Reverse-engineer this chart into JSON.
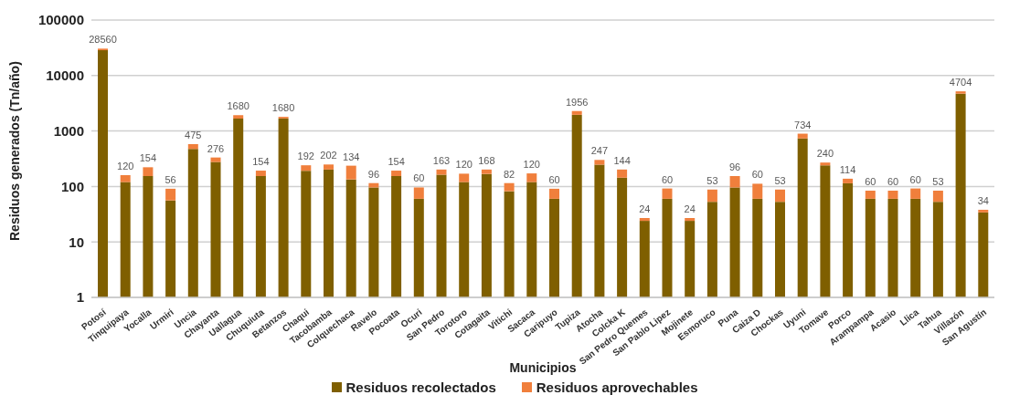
{
  "chart_data": {
    "type": "bar",
    "stacked": true,
    "log": true,
    "xlabel": "Municipios",
    "ylabel": "Residuos generados (Tn/año)",
    "categories": [
      "Potosí",
      "Tinquipaya",
      "Yocalla",
      "Urmiri",
      "Uncia",
      "Chayanta",
      "Uallagua",
      "Chuquiuta",
      "Betanzos",
      "Chaqui",
      "Tacobamba",
      "Colquechaca",
      "Ravelo",
      "Pocoata",
      "Ocuri",
      "San Pedro",
      "Torotoro",
      "Cotagaita",
      "Vitichi",
      "Sacaca",
      "Caripuyo",
      "Tupiza",
      "Atocha",
      "Colcka K",
      "San Pedro Quemes",
      "San Pablo Lipez",
      "Mojinete",
      "Esmoruco",
      "Puna",
      "Caiza D",
      "Chockas",
      "Uyuni",
      "Tomave",
      "Porco",
      "Arampampa",
      "Acasio",
      "Llica",
      "Tahua",
      "Villazón",
      "San Agustín"
    ],
    "series": [
      {
        "name": "Residuos recolectados",
        "color": "#7f5f00",
        "values": [
          28560,
          120,
          154,
          56,
          475,
          276,
          1680,
          154,
          1680,
          192,
          202,
          134,
          96,
          154,
          60,
          163,
          120,
          168,
          82,
          120,
          60,
          1956,
          247,
          144,
          24,
          60,
          24,
          53,
          96,
          60,
          53,
          734,
          240,
          114,
          60,
          60,
          60,
          53,
          4704,
          34
        ],
        "value_labels": [
          "28560",
          "120",
          "154",
          "56",
          "475",
          "276",
          "1680",
          "154",
          "1680",
          "192",
          "202",
          "134",
          "96",
          "154",
          "60",
          "163",
          "120",
          "168",
          "82",
          "120",
          "60",
          "1956",
          "247",
          "144",
          "24",
          "60",
          "24",
          "53",
          "96",
          "60",
          "53",
          "734",
          "240",
          "114",
          "60",
          "60",
          "60",
          "53",
          "4704",
          "34"
        ]
      },
      {
        "name": "Residuos aprovechables",
        "color": "#f07f3c",
        "values": [
          2000,
          40,
          68,
          35,
          105,
          57,
          250,
          39,
          120,
          49,
          47,
          103,
          19,
          39,
          36,
          39,
          50,
          34,
          33,
          52,
          31,
          334,
          54,
          58,
          3,
          32,
          3,
          35,
          58,
          52,
          35,
          161,
          30,
          24,
          24,
          24,
          32,
          31,
          486,
          4
        ]
      }
    ],
    "ylim": [
      1,
      100000
    ],
    "yticks": [
      1,
      10,
      100,
      1000,
      10000,
      100000
    ],
    "grid": "y",
    "legend": "bottom"
  }
}
